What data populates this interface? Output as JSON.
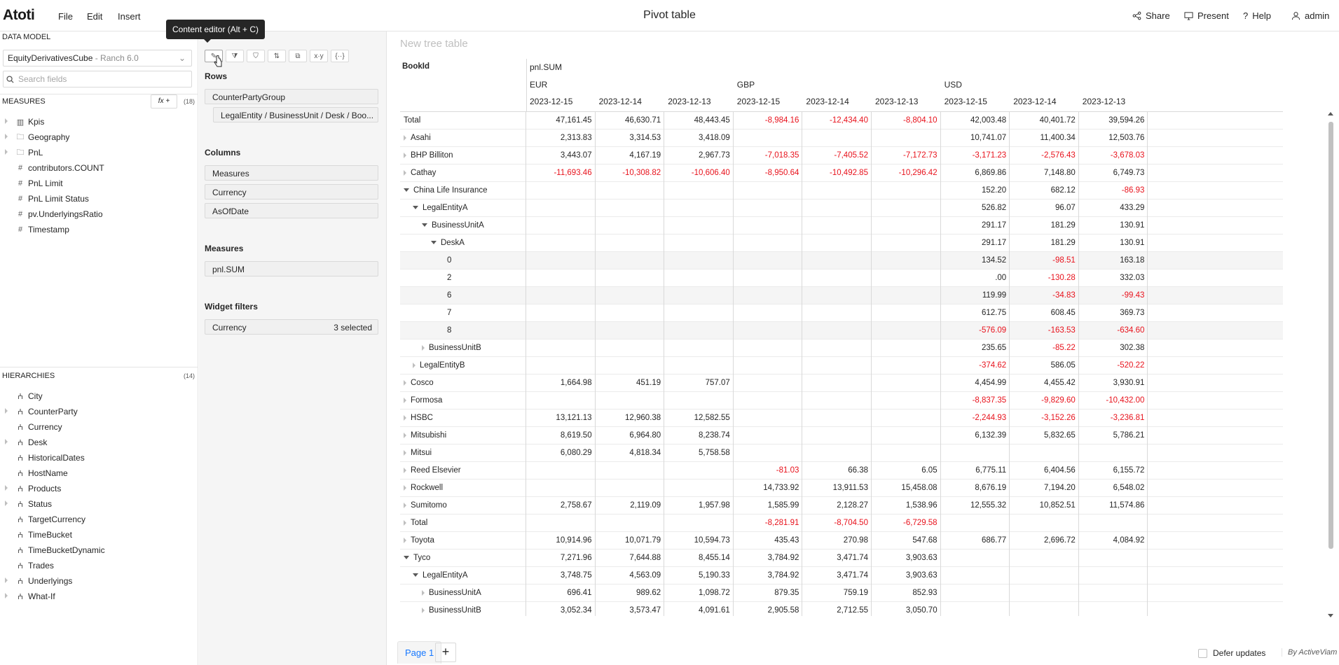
{
  "app": {
    "logo": "Atoti",
    "page_title": "Pivot table"
  },
  "menu": {
    "file": "File",
    "edit": "Edit",
    "insert": "Insert"
  },
  "header_actions": {
    "share": "Share",
    "present": "Present",
    "help": "Help",
    "user": "admin"
  },
  "data_model": {
    "section_label": "DATA MODEL",
    "cube": "EquityDerivativesCube",
    "cube_server": " - Ranch 6.0",
    "search_placeholder": "Search fields",
    "measures_label": "MEASURES",
    "fx_label": "fx +",
    "measures_count": "(18)",
    "measures": [
      {
        "label": "Kpis",
        "icon": "kpi-icon",
        "folder": true
      },
      {
        "label": "Geography",
        "icon": "folder-icon",
        "folder": true
      },
      {
        "label": "PnL",
        "icon": "folder-icon",
        "folder": true
      },
      {
        "label": "contributors.COUNT",
        "icon": "hash-icon",
        "folder": false
      },
      {
        "label": "PnL Limit",
        "icon": "hash-icon",
        "folder": false
      },
      {
        "label": "PnL Limit Status",
        "icon": "hash-icon",
        "folder": false
      },
      {
        "label": "pv.UnderlyingsRatio",
        "icon": "hash-icon",
        "folder": false
      },
      {
        "label": "Timestamp",
        "icon": "hash-icon",
        "folder": false
      }
    ],
    "hierarchies_label": "HIERARCHIES",
    "hierarchies_count": "(14)",
    "hierarchies": [
      {
        "label": "City",
        "expandable": false
      },
      {
        "label": "CounterParty",
        "expandable": true
      },
      {
        "label": "Currency",
        "expandable": false
      },
      {
        "label": "Desk",
        "expandable": true
      },
      {
        "label": "HistoricalDates",
        "expandable": false
      },
      {
        "label": "HostName",
        "expandable": false
      },
      {
        "label": "Products",
        "expandable": true
      },
      {
        "label": "Status",
        "expandable": true
      },
      {
        "label": "TargetCurrency",
        "expandable": false
      },
      {
        "label": "TimeBucket",
        "expandable": false
      },
      {
        "label": "TimeBucketDynamic",
        "expandable": false
      },
      {
        "label": "Trades",
        "expandable": false
      },
      {
        "label": "Underlyings",
        "expandable": true
      },
      {
        "label": "What-If",
        "expandable": true
      }
    ]
  },
  "editor": {
    "tooltip": "Content editor (Alt + C)",
    "tools": [
      "✎",
      "⧩",
      "⛉",
      "⇅",
      "⧉",
      "x·y",
      "{··}"
    ],
    "rows_label": "Rows",
    "rows": [
      "CounterPartyGroup",
      "LegalEntity / BusinessUnit / Desk / Boo..."
    ],
    "columns_label": "Columns",
    "columns": [
      "Measures",
      "Currency",
      "AsOfDate"
    ],
    "measures_label": "Measures",
    "measures": [
      "pnl.SUM"
    ],
    "filters_label": "Widget filters",
    "filters": [
      {
        "label": "Currency",
        "value": "3 selected"
      }
    ]
  },
  "widget": {
    "title": "New tree table",
    "row_header": "BookId",
    "measure_header": "pnl.SUM",
    "currencies": [
      "EUR",
      "GBP",
      "USD"
    ],
    "dates": [
      "2023-12-15",
      "2023-12-14",
      "2023-12-13",
      "2023-12-15",
      "2023-12-14",
      "2023-12-13",
      "2023-12-15",
      "2023-12-14",
      "2023-12-13"
    ],
    "rows": [
      {
        "label": "Total",
        "depth": 0,
        "caret": "none",
        "values": [
          "47,161.45",
          "46,630.71",
          "48,443.45",
          "-8,984.16",
          "-12,434.40",
          "-8,804.10",
          "42,003.48",
          "40,401.72",
          "39,594.26"
        ]
      },
      {
        "label": "Asahi",
        "depth": 0,
        "caret": "collapsed",
        "values": [
          "2,313.83",
          "3,314.53",
          "3,418.09",
          "",
          "",
          "",
          "10,741.07",
          "11,400.34",
          "12,503.76"
        ]
      },
      {
        "label": "BHP Billiton",
        "depth": 0,
        "caret": "collapsed",
        "values": [
          "3,443.07",
          "4,167.19",
          "2,967.73",
          "-7,018.35",
          "-7,405.52",
          "-7,172.73",
          "-3,171.23",
          "-2,576.43",
          "-3,678.03"
        ]
      },
      {
        "label": "Cathay",
        "depth": 0,
        "caret": "collapsed",
        "values": [
          "-11,693.46",
          "-10,308.82",
          "-10,606.40",
          "-8,950.64",
          "-10,492.85",
          "-10,296.42",
          "6,869.86",
          "7,148.80",
          "6,749.73"
        ]
      },
      {
        "label": "China Life Insurance",
        "depth": 0,
        "caret": "expanded",
        "values": [
          "",
          "",
          "",
          "",
          "",
          "",
          "152.20",
          "682.12",
          "-86.93"
        ]
      },
      {
        "label": "LegalEntityA",
        "depth": 1,
        "caret": "expanded",
        "values": [
          "",
          "",
          "",
          "",
          "",
          "",
          "526.82",
          "96.07",
          "433.29"
        ]
      },
      {
        "label": "BusinessUnitA",
        "depth": 2,
        "caret": "expanded",
        "values": [
          "",
          "",
          "",
          "",
          "",
          "",
          "291.17",
          "181.29",
          "130.91"
        ]
      },
      {
        "label": "DeskA",
        "depth": 3,
        "caret": "expanded",
        "values": [
          "",
          "",
          "",
          "",
          "",
          "",
          "291.17",
          "181.29",
          "130.91"
        ]
      },
      {
        "label": "0",
        "depth": 4,
        "caret": "none",
        "values": [
          "",
          "",
          "",
          "",
          "",
          "",
          "134.52",
          "-98.51",
          "163.18"
        ]
      },
      {
        "label": "2",
        "depth": 4,
        "caret": "none",
        "values": [
          "",
          "",
          "",
          "",
          "",
          "",
          ".00",
          "-130.28",
          "332.03"
        ]
      },
      {
        "label": "6",
        "depth": 4,
        "caret": "none",
        "values": [
          "",
          "",
          "",
          "",
          "",
          "",
          "119.99",
          "-34.83",
          "-99.43"
        ]
      },
      {
        "label": "7",
        "depth": 4,
        "caret": "none",
        "values": [
          "",
          "",
          "",
          "",
          "",
          "",
          "612.75",
          "608.45",
          "369.73"
        ]
      },
      {
        "label": "8",
        "depth": 4,
        "caret": "none",
        "values": [
          "",
          "",
          "",
          "",
          "",
          "",
          "-576.09",
          "-163.53",
          "-634.60"
        ]
      },
      {
        "label": "BusinessUnitB",
        "depth": 2,
        "caret": "collapsed",
        "values": [
          "",
          "",
          "",
          "",
          "",
          "",
          "235.65",
          "-85.22",
          "302.38"
        ]
      },
      {
        "label": "LegalEntityB",
        "depth": 1,
        "caret": "collapsed",
        "values": [
          "",
          "",
          "",
          "",
          "",
          "",
          "-374.62",
          "586.05",
          "-520.22"
        ]
      },
      {
        "label": "Cosco",
        "depth": 0,
        "caret": "collapsed",
        "values": [
          "1,664.98",
          "451.19",
          "757.07",
          "",
          "",
          "",
          "4,454.99",
          "4,455.42",
          "3,930.91"
        ]
      },
      {
        "label": "Formosa",
        "depth": 0,
        "caret": "collapsed",
        "values": [
          "",
          "",
          "",
          "",
          "",
          "",
          "-8,837.35",
          "-9,829.60",
          "-10,432.00"
        ]
      },
      {
        "label": "HSBC",
        "depth": 0,
        "caret": "collapsed",
        "values": [
          "13,121.13",
          "12,960.38",
          "12,582.55",
          "",
          "",
          "",
          "-2,244.93",
          "-3,152.26",
          "-3,236.81"
        ]
      },
      {
        "label": "Mitsubishi",
        "depth": 0,
        "caret": "collapsed",
        "values": [
          "8,619.50",
          "6,964.80",
          "8,238.74",
          "",
          "",
          "",
          "6,132.39",
          "5,832.65",
          "5,786.21"
        ]
      },
      {
        "label": "Mitsui",
        "depth": 0,
        "caret": "collapsed",
        "values": [
          "6,080.29",
          "4,818.34",
          "5,758.58",
          "",
          "",
          "",
          "",
          "",
          ""
        ]
      },
      {
        "label": "Reed Elsevier",
        "depth": 0,
        "caret": "collapsed",
        "values": [
          "",
          "",
          "",
          "-81.03",
          "66.38",
          "6.05",
          "6,775.11",
          "6,404.56",
          "6,155.72"
        ]
      },
      {
        "label": "Rockwell",
        "depth": 0,
        "caret": "collapsed",
        "values": [
          "",
          "",
          "",
          "14,733.92",
          "13,911.53",
          "15,458.08",
          "8,676.19",
          "7,194.20",
          "6,548.02"
        ]
      },
      {
        "label": "Sumitomo",
        "depth": 0,
        "caret": "collapsed",
        "values": [
          "2,758.67",
          "2,119.09",
          "1,957.98",
          "1,585.99",
          "2,128.27",
          "1,538.96",
          "12,555.32",
          "10,852.51",
          "11,574.86"
        ]
      },
      {
        "label": "Total",
        "depth": 0,
        "caret": "collapsed",
        "values": [
          "",
          "",
          "",
          "-8,281.91",
          "-8,704.50",
          "-6,729.58",
          "",
          "",
          ""
        ]
      },
      {
        "label": "Toyota",
        "depth": 0,
        "caret": "collapsed",
        "values": [
          "10,914.96",
          "10,071.79",
          "10,594.73",
          "435.43",
          "270.98",
          "547.68",
          "686.77",
          "2,696.72",
          "4,084.92"
        ]
      },
      {
        "label": "Tyco",
        "depth": 0,
        "caret": "expanded",
        "values": [
          "7,271.96",
          "7,644.88",
          "8,455.14",
          "3,784.92",
          "3,471.74",
          "3,903.63",
          "",
          "",
          ""
        ]
      },
      {
        "label": "LegalEntityA",
        "depth": 1,
        "caret": "expanded",
        "values": [
          "3,748.75",
          "4,563.09",
          "5,190.33",
          "3,784.92",
          "3,471.74",
          "3,903.63",
          "",
          "",
          ""
        ]
      },
      {
        "label": "BusinessUnitA",
        "depth": 2,
        "caret": "collapsed",
        "values": [
          "696.41",
          "989.62",
          "1,098.72",
          "879.35",
          "759.19",
          "852.93",
          "",
          "",
          ""
        ]
      },
      {
        "label": "BusinessUnitB",
        "depth": 2,
        "caret": "collapsed",
        "values": [
          "3,052.34",
          "3,573.47",
          "4,091.61",
          "2,905.58",
          "2,712.55",
          "3,050.70",
          "",
          "",
          ""
        ]
      }
    ]
  },
  "bottom": {
    "page_tab": "Page 1",
    "add_page": "+",
    "defer_updates": "Defer updates",
    "brand": "By ActiveViam"
  }
}
